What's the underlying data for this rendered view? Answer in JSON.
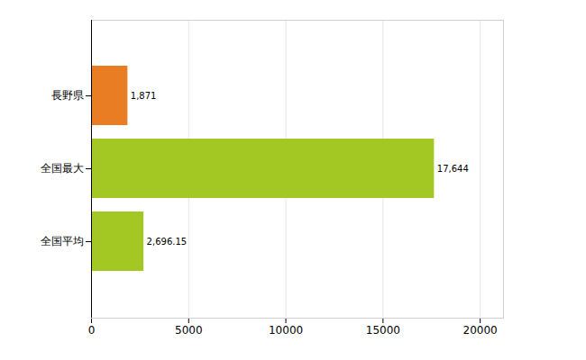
{
  "chart_data": {
    "type": "bar",
    "orientation": "horizontal",
    "categories": [
      "長野県",
      "全国最大",
      "全国平均"
    ],
    "values": [
      1871,
      17644,
      2696.15
    ],
    "value_labels": [
      "1,871",
      "17,644",
      "2,696.15"
    ],
    "colors": [
      "#e87d23",
      "#a4c823",
      "#a4c823"
    ],
    "xlim": [
      0,
      21200
    ],
    "xticks": [
      0,
      5000,
      10000,
      15000,
      20000
    ],
    "grid": true,
    "data_labels": true
  }
}
